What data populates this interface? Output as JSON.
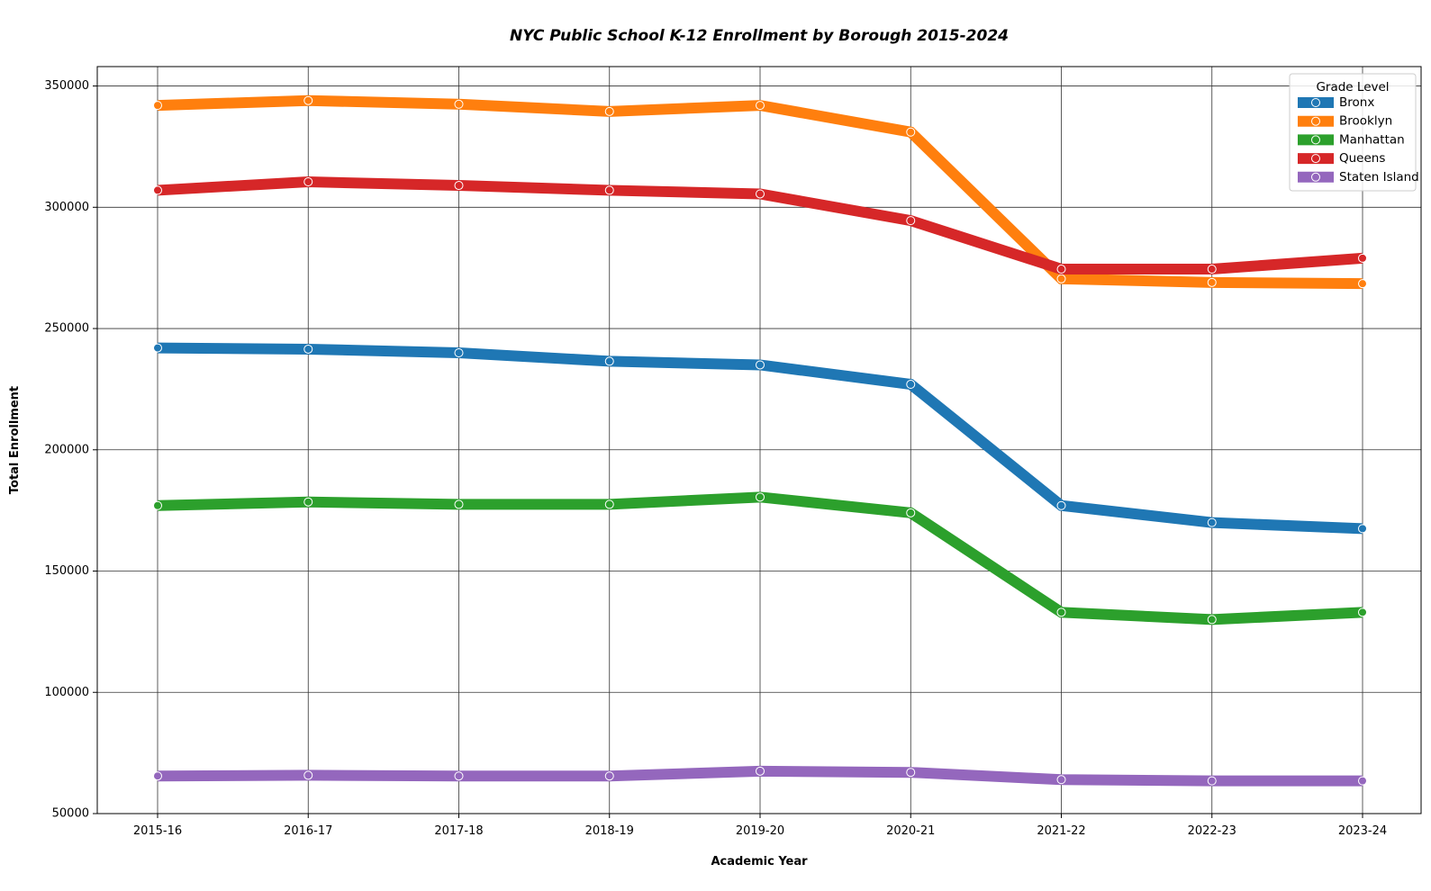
{
  "chart_data": {
    "type": "line",
    "title": "NYC Public School K-12 Enrollment by Borough 2015-2024",
    "xlabel": "Academic Year",
    "ylabel": "Total Enrollment",
    "categories": [
      "2015-16",
      "2016-17",
      "2017-18",
      "2018-19",
      "2019-20",
      "2020-21",
      "2021-22",
      "2022-23",
      "2023-24"
    ],
    "ylim": [
      50000,
      358000
    ],
    "yticks": [
      50000,
      100000,
      150000,
      200000,
      250000,
      300000,
      350000
    ],
    "grid": true,
    "legend": {
      "title": "Grade Level",
      "placement": "top-right"
    },
    "series": [
      {
        "name": "Bronx",
        "color": "#1f77b4",
        "values": [
          242000,
          241500,
          240000,
          236500,
          235000,
          227000,
          177000,
          170000,
          167500
        ]
      },
      {
        "name": "Brooklyn",
        "color": "#ff7f0e",
        "values": [
          342000,
          344000,
          342500,
          339500,
          342000,
          331000,
          270500,
          269000,
          268500
        ]
      },
      {
        "name": "Manhattan",
        "color": "#2ca02c",
        "values": [
          177000,
          178500,
          177500,
          177500,
          180500,
          174000,
          133000,
          130000,
          133000
        ]
      },
      {
        "name": "Queens",
        "color": "#d62728",
        "values": [
          307000,
          310500,
          309000,
          307000,
          305500,
          294500,
          274500,
          274500,
          279000
        ]
      },
      {
        "name": "Staten Island",
        "color": "#9467bd",
        "values": [
          65500,
          65800,
          65500,
          65500,
          67500,
          67000,
          64000,
          63500,
          63500
        ]
      }
    ]
  }
}
